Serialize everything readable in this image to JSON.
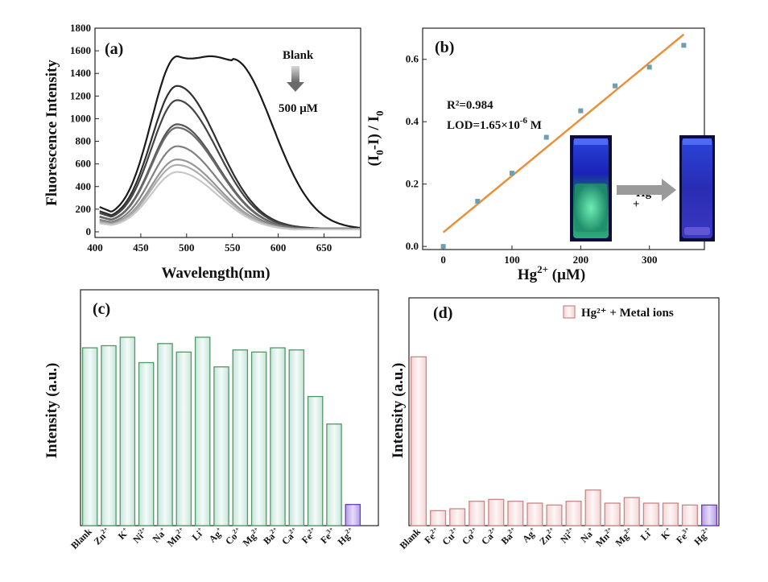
{
  "panels": {
    "a": {
      "label": "(a)",
      "ylabel": "Fluorescence Intensity",
      "xlabel": "Wavelength(nm)",
      "legend_top": "Blank",
      "legend_bottom": "500 μM"
    },
    "b": {
      "label": "(b)",
      "ylabel_main": "(I",
      "ylabel_sub0": "0",
      "ylabel_mid": "-I) / I",
      "ylabel_sub1": "0",
      "xlabel_main": "Hg",
      "xlabel_sup": "2+",
      "xlabel_unit": " (μM)",
      "r2": "R²=0.984",
      "lod_main": "LOD=1.65×10",
      "lod_sup": "-6",
      "lod_unit": " M",
      "inset_text": "Hg",
      "inset_sup": "2",
      "inset_plus": "+"
    },
    "c": {
      "label": "(c)",
      "ylabel": "Intensity (a.u.)"
    },
    "d": {
      "label": "(d)",
      "ylabel": "Intensity (a.u.)",
      "legend": "Hg²⁺ + Metal ions"
    }
  },
  "colors": {
    "fit_line": "#e8903a",
    "scatter": "#6f9fae",
    "bar_c_fill": "#dcefe9",
    "bar_c_edge": "#4f9a63",
    "bar_hg_fill": "#c9b8ee",
    "bar_hg_edge": "#6a3fc0",
    "bar_d_fill": "#fbe9e9",
    "bar_d_edge": "#c98787",
    "arrow": "#9a9a9a"
  },
  "chart_data": [
    {
      "id": "a",
      "type": "line",
      "xlabel": "Wavelength(nm)",
      "ylabel": "Fluorescence Intensity",
      "xlim": [
        400,
        690
      ],
      "ylim": [
        -50,
        1800
      ],
      "xticks": [
        400,
        450,
        500,
        550,
        600,
        650
      ],
      "yticks": [
        0,
        200,
        400,
        600,
        800,
        1000,
        1200,
        1400,
        1600,
        1800
      ],
      "series": [
        {
          "peak": 1600,
          "plateau": true,
          "color": "#1a1a1a"
        },
        {
          "peak": 1330,
          "color": "#2f2f2f"
        },
        {
          "peak": 1200,
          "color": "#444444"
        },
        {
          "peak": 980,
          "color": "#555555"
        },
        {
          "peak": 950,
          "color": "#6a6a6a"
        },
        {
          "peak": 780,
          "color": "#808080"
        },
        {
          "peak": 660,
          "color": "#969696"
        },
        {
          "peak": 610,
          "color": "#adadad"
        },
        {
          "peak": 545,
          "color": "#c8c8c8"
        }
      ]
    },
    {
      "id": "b",
      "type": "scatter",
      "xlabel": "Hg2+ (μM)",
      "ylabel": "(I0-I) / I0",
      "xlim": [
        -30,
        380
      ],
      "ylim": [
        -0.01,
        0.7
      ],
      "xticks": [
        0,
        100,
        200,
        300
      ],
      "yticks": [
        0.0,
        0.2,
        0.4,
        0.6
      ],
      "x": [
        0,
        50,
        100,
        150,
        200,
        250,
        300,
        350
      ],
      "y": [
        0.0,
        0.145,
        0.235,
        0.35,
        0.435,
        0.515,
        0.575,
        0.645
      ],
      "fit": {
        "x": [
          0,
          350
        ],
        "y": [
          0.045,
          0.68
        ]
      },
      "r2": "0.984"
    },
    {
      "id": "c",
      "type": "bar",
      "ylabel": "Intensity (a.u.)",
      "ylim": [
        0,
        100
      ],
      "categories": [
        {
          "main": "Blank",
          "sup": ""
        },
        {
          "main": "Zn",
          "sup": "2+"
        },
        {
          "main": "K",
          "sup": "+"
        },
        {
          "main": "Ni",
          "sup": "2+"
        },
        {
          "main": "Na",
          "sup": "+"
        },
        {
          "main": "Mn",
          "sup": "2+"
        },
        {
          "main": "Li",
          "sup": "+"
        },
        {
          "main": "Ag",
          "sup": "+"
        },
        {
          "main": "Co",
          "sup": "2+"
        },
        {
          "main": "Mg",
          "sup": "2+"
        },
        {
          "main": "Ba",
          "sup": "2+"
        },
        {
          "main": "Ca",
          "sup": "2+"
        },
        {
          "main": "Fe",
          "sup": "2+"
        },
        {
          "main": "Fe",
          "sup": "3+"
        },
        {
          "main": "Hg",
          "sup": "2+"
        }
      ],
      "values": [
        84,
        85,
        89,
        77,
        86,
        82,
        89,
        75,
        83,
        82,
        84,
        83,
        61,
        48,
        10
      ]
    },
    {
      "id": "d",
      "type": "bar",
      "ylabel": "Intensity (a.u.)",
      "legend": "Hg²⁺ + Metal ions",
      "ylim": [
        0,
        100
      ],
      "categories": [
        {
          "main": "Blank",
          "sup": ""
        },
        {
          "main": "Fe",
          "sup": "2+"
        },
        {
          "main": "Cu",
          "sup": "2+"
        },
        {
          "main": "Co",
          "sup": "2+"
        },
        {
          "main": "Ca",
          "sup": "2+"
        },
        {
          "main": "Ba",
          "sup": "2+"
        },
        {
          "main": "Ag",
          "sup": "+"
        },
        {
          "main": "Zn",
          "sup": "2+"
        },
        {
          "main": "Ni",
          "sup": "2+"
        },
        {
          "main": "Na",
          "sup": "+"
        },
        {
          "main": "Mn",
          "sup": "2+"
        },
        {
          "main": "Mg",
          "sup": "2+"
        },
        {
          "main": "Li",
          "sup": "+"
        },
        {
          "main": "K",
          "sup": "+"
        },
        {
          "main": "Fe",
          "sup": "3+"
        },
        {
          "main": "Hg",
          "sup": "2+"
        }
      ],
      "values": [
        90,
        8,
        9,
        13,
        14,
        13,
        12,
        11,
        13,
        19,
        12,
        15,
        12,
        12,
        11,
        11
      ]
    }
  ]
}
